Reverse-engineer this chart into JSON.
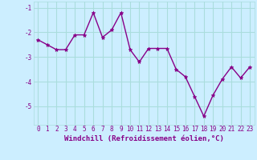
{
  "x": [
    0,
    1,
    2,
    3,
    4,
    5,
    6,
    7,
    8,
    9,
    10,
    11,
    12,
    13,
    14,
    15,
    16,
    17,
    18,
    19,
    20,
    21,
    22,
    23
  ],
  "y": [
    -2.3,
    -2.5,
    -2.7,
    -2.7,
    -2.1,
    -2.1,
    -1.2,
    -2.2,
    -1.9,
    -1.2,
    -2.7,
    -3.2,
    -2.65,
    -2.65,
    -2.65,
    -3.5,
    -3.8,
    -4.6,
    -5.4,
    -4.55,
    -3.9,
    -3.4,
    -3.85,
    -3.4
  ],
  "line_color": "#880088",
  "marker": "*",
  "marker_size": 3.5,
  "bg_color": "#cceeff",
  "grid_color": "#aadddd",
  "xlabel": "Windchill (Refroidissement éolien,°C)",
  "ylim": [
    -5.75,
    -0.75
  ],
  "xlim": [
    -0.5,
    23.5
  ],
  "yticks": [
    -5,
    -4,
    -3,
    -2,
    -1
  ],
  "ytick_labels": [
    "-5",
    "-4",
    "-3",
    "-2",
    "-1"
  ],
  "xticks": [
    0,
    1,
    2,
    3,
    4,
    5,
    6,
    7,
    8,
    9,
    10,
    11,
    12,
    13,
    14,
    15,
    16,
    17,
    18,
    19,
    20,
    21,
    22,
    23
  ],
  "tick_label_size": 5.5,
  "xlabel_size": 6.5,
  "line_width": 1.0
}
